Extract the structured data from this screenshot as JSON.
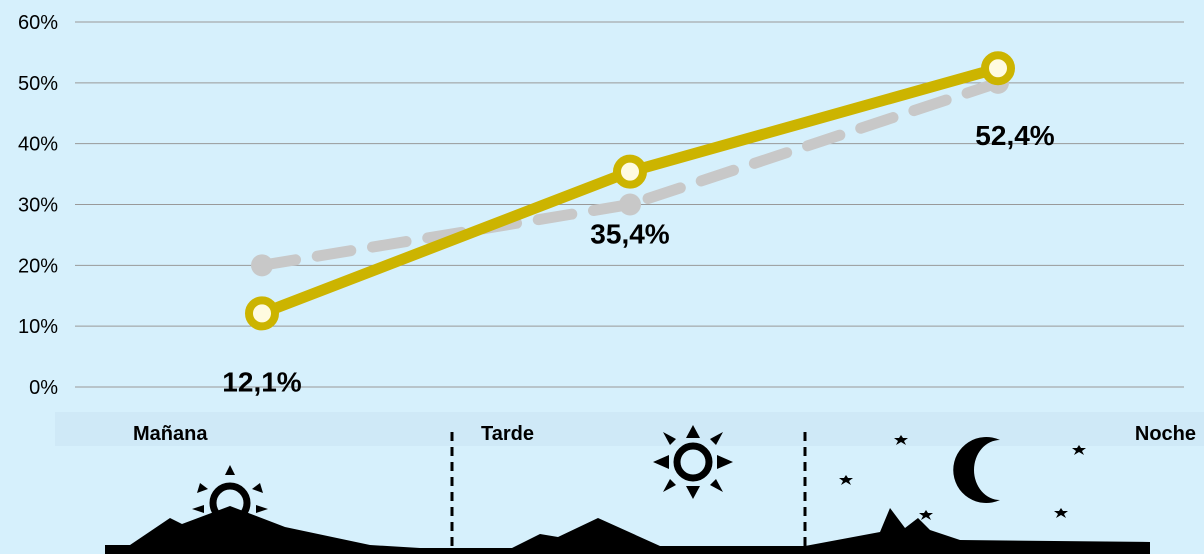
{
  "chart_data": {
    "type": "line",
    "categories": [
      "Mañana",
      "Tarde",
      "Noche"
    ],
    "series": [
      {
        "values": [
          12.1,
          35.4,
          52.4
        ],
        "color": "#ccb400",
        "style": "solid",
        "data_labels": [
          "12,1%",
          "35,4%",
          "52,4%"
        ]
      },
      {
        "values": [
          20,
          30,
          50
        ],
        "color": "#c8c8c8",
        "style": "dashed"
      }
    ],
    "yticks": [
      "0%",
      "10%",
      "20%",
      "30%",
      "40%",
      "50%",
      "60%"
    ],
    "ylim": [
      0,
      60
    ],
    "grid": true,
    "legend": "none"
  },
  "periods": [
    "Mañana",
    "Tarde",
    "Noche"
  ],
  "icons": [
    "sunrise-icon",
    "sun-icon",
    "moon-icon",
    "star-icon",
    "mountains-silhouette"
  ],
  "colors": {
    "background": "#d6f0fc",
    "grid": "#999999",
    "silhouette": "#000000"
  }
}
